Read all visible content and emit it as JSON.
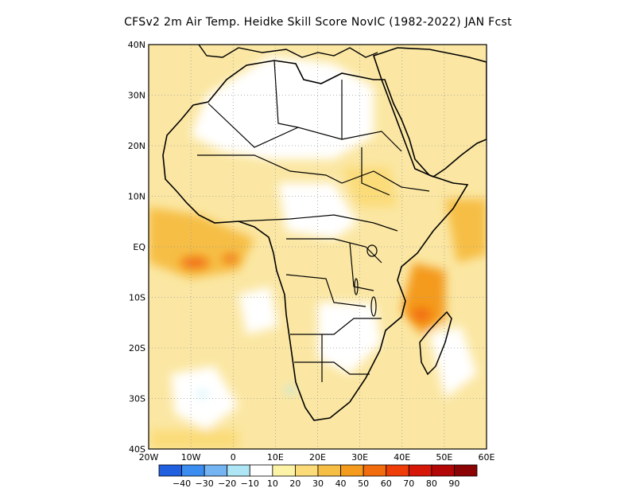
{
  "title": "CFSv2  2m Air Temp. Heidke Skill Score NovIC (1982-2022) JAN Fcst",
  "map": {
    "lon_range": [
      -20,
      60
    ],
    "lat_range": [
      -40,
      40
    ],
    "lon_ticks": [
      "20W",
      "10W",
      "0",
      "10E",
      "20E",
      "30E",
      "40E",
      "50E",
      "60E"
    ],
    "lat_ticks": [
      "40N",
      "30N",
      "20N",
      "10N",
      "EQ",
      "10S",
      "20S",
      "30S",
      "40S"
    ],
    "grid": "dotted",
    "background_color": "#fbe7a3"
  },
  "colorbar": {
    "labels": [
      "-40",
      "-30",
      "-20",
      "-10",
      "10",
      "20",
      "30",
      "40",
      "50",
      "60",
      "70",
      "80",
      "90"
    ],
    "colors": [
      "#1f5fe0",
      "#3c8df0",
      "#74b4f2",
      "#aee6f5",
      "#ffffff",
      "#fdf3a6",
      "#fbdc79",
      "#f6be45",
      "#f49a1c",
      "#f26b0c",
      "#ee3d07",
      "#d61606",
      "#b30606",
      "#8c0303"
    ]
  }
}
